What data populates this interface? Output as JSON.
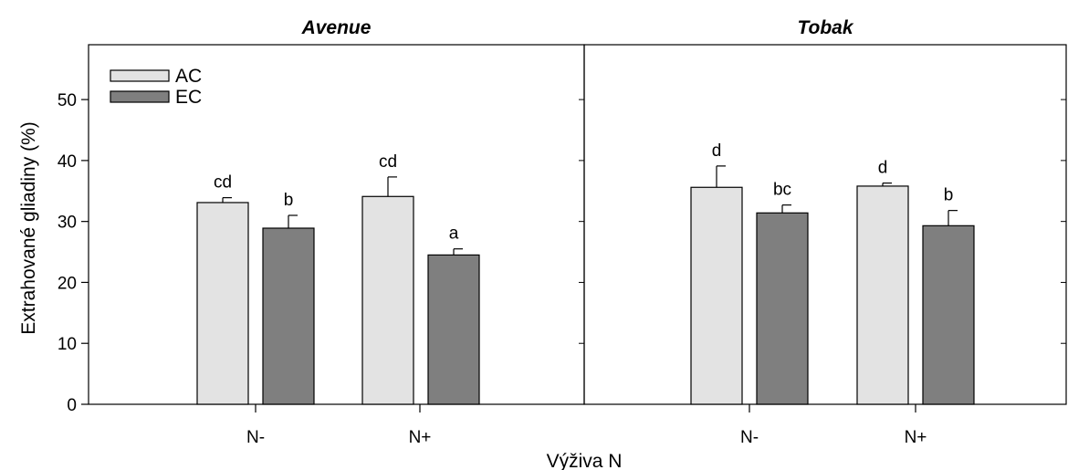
{
  "chart_data": {
    "type": "bar",
    "ylabel": "Extrahované gliadiny (%)",
    "xlabel": "Výživa N",
    "ylim": [
      0,
      59
    ],
    "yticks": [
      0,
      10,
      20,
      30,
      40,
      50
    ],
    "legend": {
      "position": "top-left",
      "entries": [
        "AC",
        "EC"
      ]
    },
    "colors": {
      "AC": "#e3e3e3",
      "EC": "#7f7f7f"
    },
    "panels": [
      {
        "title": "Avenue",
        "categories": [
          "N-",
          "N+"
        ],
        "series": [
          {
            "name": "AC",
            "values": [
              33.1,
              34.1
            ],
            "errors": [
              0.8,
              3.2
            ],
            "labels": [
              "cd",
              "cd"
            ]
          },
          {
            "name": "EC",
            "values": [
              28.9,
              24.5
            ],
            "errors": [
              2.1,
              1.0
            ],
            "labels": [
              "b",
              "a"
            ]
          }
        ]
      },
      {
        "title": "Tobak",
        "categories": [
          "N-",
          "N+"
        ],
        "series": [
          {
            "name": "AC",
            "values": [
              35.6,
              35.8
            ],
            "errors": [
              3.5,
              0.5
            ],
            "labels": [
              "d",
              "d"
            ]
          },
          {
            "name": "EC",
            "values": [
              31.4,
              29.3
            ],
            "errors": [
              1.3,
              2.5
            ],
            "labels": [
              "bc",
              "b"
            ]
          }
        ]
      }
    ]
  }
}
